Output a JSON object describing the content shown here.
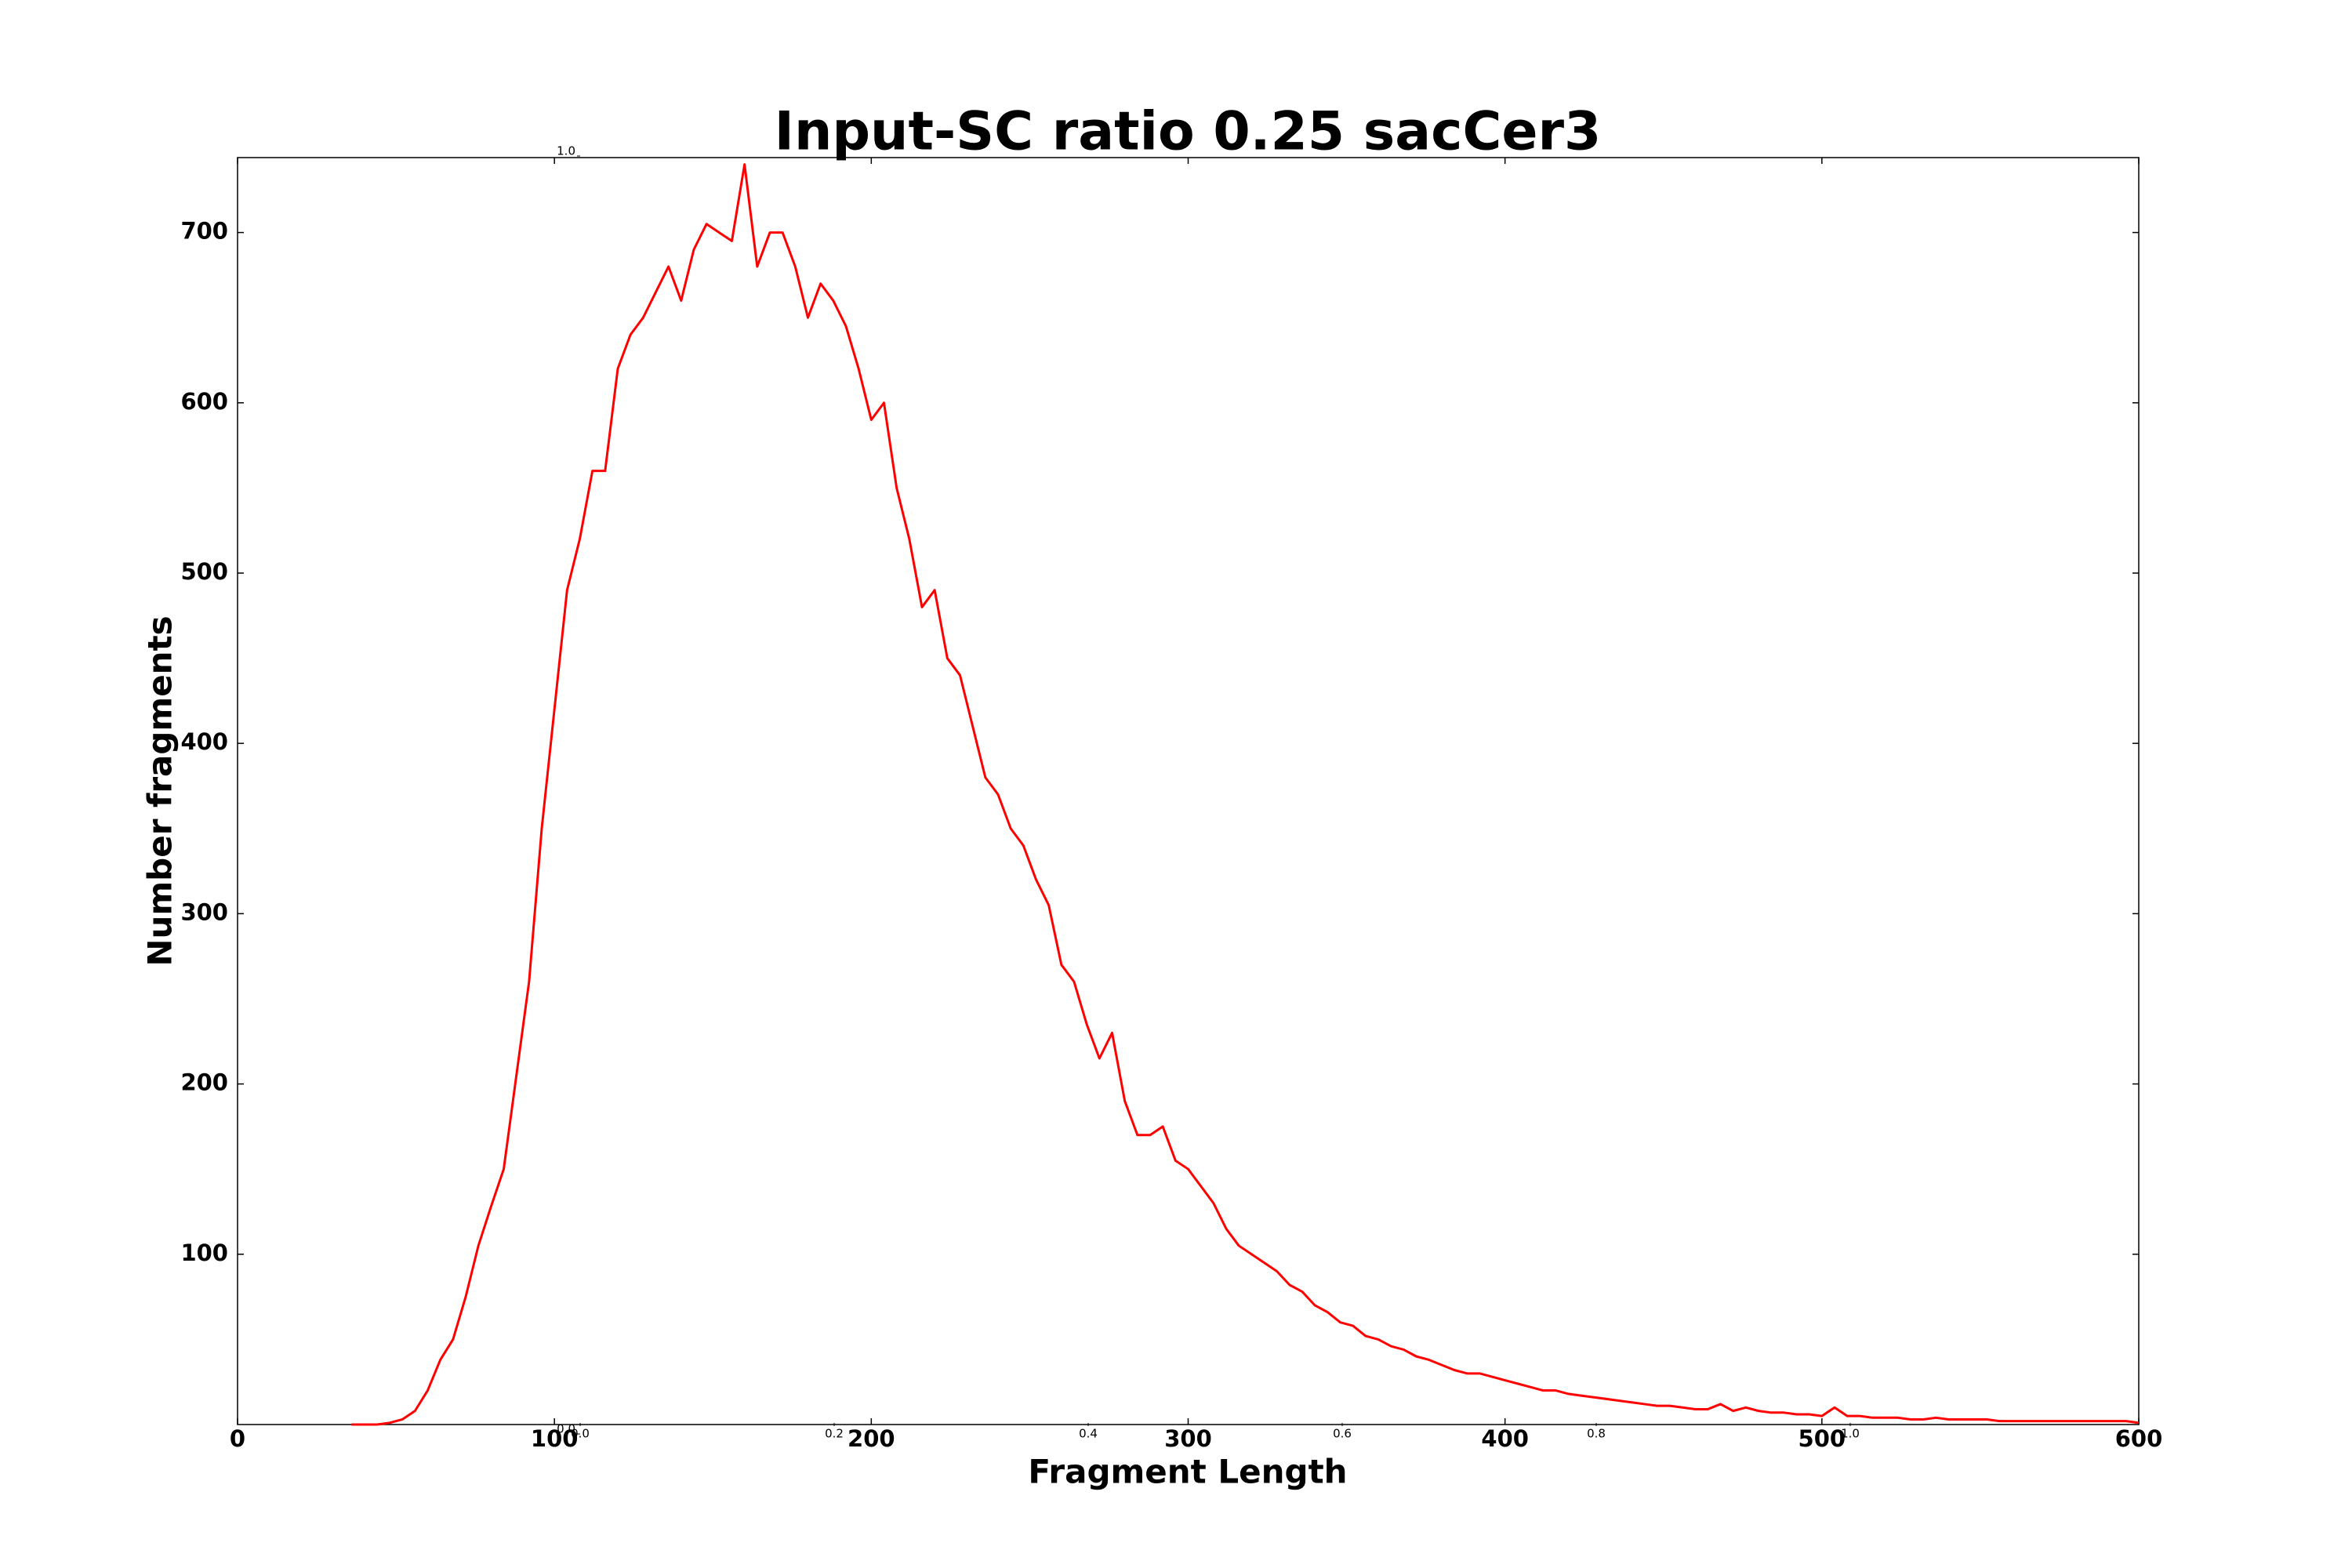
{
  "chart_data": [
    {
      "type": "line",
      "title": "Input-SC ratio 0.25 sacCer3",
      "x_label": "Fragment Length",
      "y_label": "Number fragments",
      "xlim": [
        0,
        600
      ],
      "xticks": [
        0,
        100,
        200,
        300,
        400,
        500,
        600
      ],
      "ylim": [
        0,
        744
      ],
      "yticks": [
        100,
        200,
        300,
        400,
        500,
        600,
        700
      ],
      "x": [
        36,
        40,
        44,
        48,
        52,
        56,
        60,
        64,
        68,
        72,
        76,
        80,
        84,
        88,
        92,
        96,
        100,
        104,
        108,
        112,
        116,
        120,
        124,
        128,
        132,
        136,
        140,
        144,
        148,
        152,
        156,
        160,
        164,
        168,
        172,
        176,
        180,
        184,
        188,
        192,
        196,
        200,
        204,
        208,
        212,
        216,
        220,
        224,
        228,
        232,
        236,
        240,
        244,
        248,
        252,
        256,
        260,
        264,
        268,
        272,
        276,
        280,
        284,
        288,
        292,
        296,
        300,
        304,
        308,
        312,
        316,
        320,
        324,
        328,
        332,
        336,
        340,
        344,
        348,
        352,
        356,
        360,
        364,
        368,
        372,
        376,
        380,
        384,
        388,
        392,
        396,
        400,
        404,
        408,
        412,
        416,
        420,
        424,
        428,
        432,
        436,
        440,
        444,
        448,
        452,
        456,
        460,
        464,
        468,
        472,
        476,
        480,
        484,
        488,
        492,
        496,
        500,
        504,
        508,
        512,
        516,
        520,
        524,
        528,
        532,
        536,
        540,
        544,
        548,
        552,
        556,
        560,
        564,
        568,
        572,
        576,
        580,
        584,
        588,
        592,
        596,
        600
      ],
      "series": [
        {
          "name": "fragments",
          "color": "#ff0000",
          "values": [
            0,
            0,
            0,
            1,
            3,
            8,
            20,
            38,
            50,
            75,
            105,
            128,
            150,
            205,
            260,
            350,
            420,
            490,
            520,
            560,
            560,
            620,
            640,
            650,
            665,
            680,
            660,
            690,
            705,
            700,
            695,
            740,
            680,
            700,
            700,
            680,
            650,
            670,
            660,
            645,
            620,
            590,
            600,
            550,
            520,
            480,
            490,
            450,
            440,
            410,
            380,
            370,
            350,
            340,
            320,
            305,
            270,
            260,
            235,
            215,
            230,
            190,
            170,
            170,
            175,
            155,
            150,
            140,
            130,
            115,
            105,
            100,
            95,
            90,
            82,
            78,
            70,
            66,
            60,
            58,
            52,
            50,
            46,
            44,
            40,
            38,
            35,
            32,
            30,
            30,
            28,
            26,
            24,
            22,
            20,
            20,
            18,
            17,
            16,
            15,
            14,
            13,
            12,
            11,
            11,
            10,
            9,
            9,
            12,
            8,
            10,
            8,
            7,
            7,
            6,
            6,
            5,
            10,
            5,
            5,
            4,
            4,
            4,
            3,
            3,
            4,
            3,
            3,
            3,
            3,
            2,
            2,
            2,
            2,
            2,
            2,
            2,
            2,
            2,
            2,
            2,
            1
          ]
        }
      ]
    },
    {
      "type": "empty",
      "xlim": [
        0,
        1
      ],
      "xticks": [
        {
          "value": 0,
          "label": "0.0"
        },
        0.2,
        0.4,
        0.6,
        0.8,
        {
          "value": 1,
          "label": "1.0"
        }
      ],
      "ylim": [
        0,
        1
      ],
      "yticks": [
        {
          "value": 0,
          "label": "0.0"
        },
        {
          "value": 1,
          "label": "1.0"
        }
      ]
    }
  ]
}
